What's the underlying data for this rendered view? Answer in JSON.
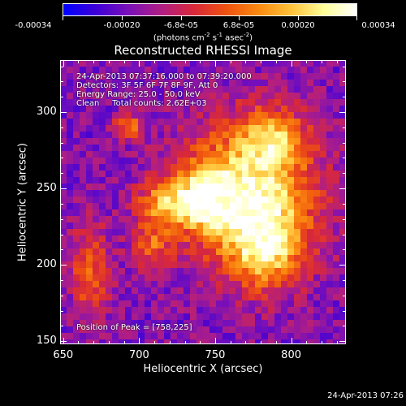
{
  "colorbar": {
    "tick_labels": [
      "-0.00034",
      "-0.00020",
      "-6.8e-05",
      "6.8e-05",
      "0.00020",
      "0.00034"
    ],
    "tick_values": [
      -0.00034,
      -0.0002,
      -6.8e-05,
      6.8e-05,
      0.0002,
      0.00034
    ],
    "range": [
      -0.00034,
      0.00034
    ],
    "units_prefix": "(photons cm",
    "units_exp1": "-2",
    "units_mid": " s",
    "units_exp2": "-1",
    "units_mid2": " asec",
    "units_exp3": "-2",
    "units_suffix": ")",
    "colors": [
      "#0000ff",
      "#3d00d6",
      "#7a10b8",
      "#b01e84",
      "#d8283a",
      "#ef5210",
      "#fa8a10",
      "#ffc23a",
      "#ffff9a",
      "#ffffff"
    ]
  },
  "chart_data": {
    "type": "heatmap",
    "title": "Reconstructed RHESSI Image",
    "xlabel": "Heliocentric X (arcsec)",
    "ylabel": "Heliocentric Y (arcsec)",
    "xlim": [
      648,
      836
    ],
    "ylim": [
      148,
      334
    ],
    "x_ticks": [
      650,
      700,
      750,
      800
    ],
    "y_ticks": [
      150,
      200,
      250,
      300
    ],
    "x_tick_labels": [
      "650",
      "700",
      "750",
      "800"
    ],
    "y_tick_labels": [
      "150",
      "200",
      "250",
      "300"
    ],
    "peak": [
      758,
      225
    ],
    "sources": [
      {
        "x": 773,
        "y": 246,
        "sx": 30,
        "sy": 32,
        "amp": 1.0
      },
      {
        "x": 742,
        "y": 243,
        "sx": 14,
        "sy": 14,
        "amp": 0.65
      },
      {
        "x": 784,
        "y": 210,
        "sx": 16,
        "sy": 18,
        "amp": 0.6
      },
      {
        "x": 788,
        "y": 284,
        "sx": 14,
        "sy": 12,
        "amp": 0.5
      },
      {
        "x": 715,
        "y": 240,
        "sx": 12,
        "sy": 11,
        "amp": 0.55
      },
      {
        "x": 708,
        "y": 212,
        "sx": 9,
        "sy": 10,
        "amp": 0.45
      },
      {
        "x": 668,
        "y": 196,
        "sx": 9,
        "sy": 22,
        "amp": 0.5
      },
      {
        "x": 693,
        "y": 290,
        "sx": 7,
        "sy": 6,
        "amp": 0.55
      }
    ]
  },
  "annotations": {
    "time_range": "24-Apr-2013 07:37:16.000 to 07:39:20.000",
    "detectors": "Detectors: 3F 5F 6F 7F 8F 9F, Att 0",
    "energy": "Energy Range: 25.0 - 50.0 keV",
    "method": "Clean     Total counts: 2.62E+03",
    "peak": "Position of Peak = [758,225]"
  },
  "footer": {
    "timestamp": "24-Apr-2013 07:26"
  }
}
